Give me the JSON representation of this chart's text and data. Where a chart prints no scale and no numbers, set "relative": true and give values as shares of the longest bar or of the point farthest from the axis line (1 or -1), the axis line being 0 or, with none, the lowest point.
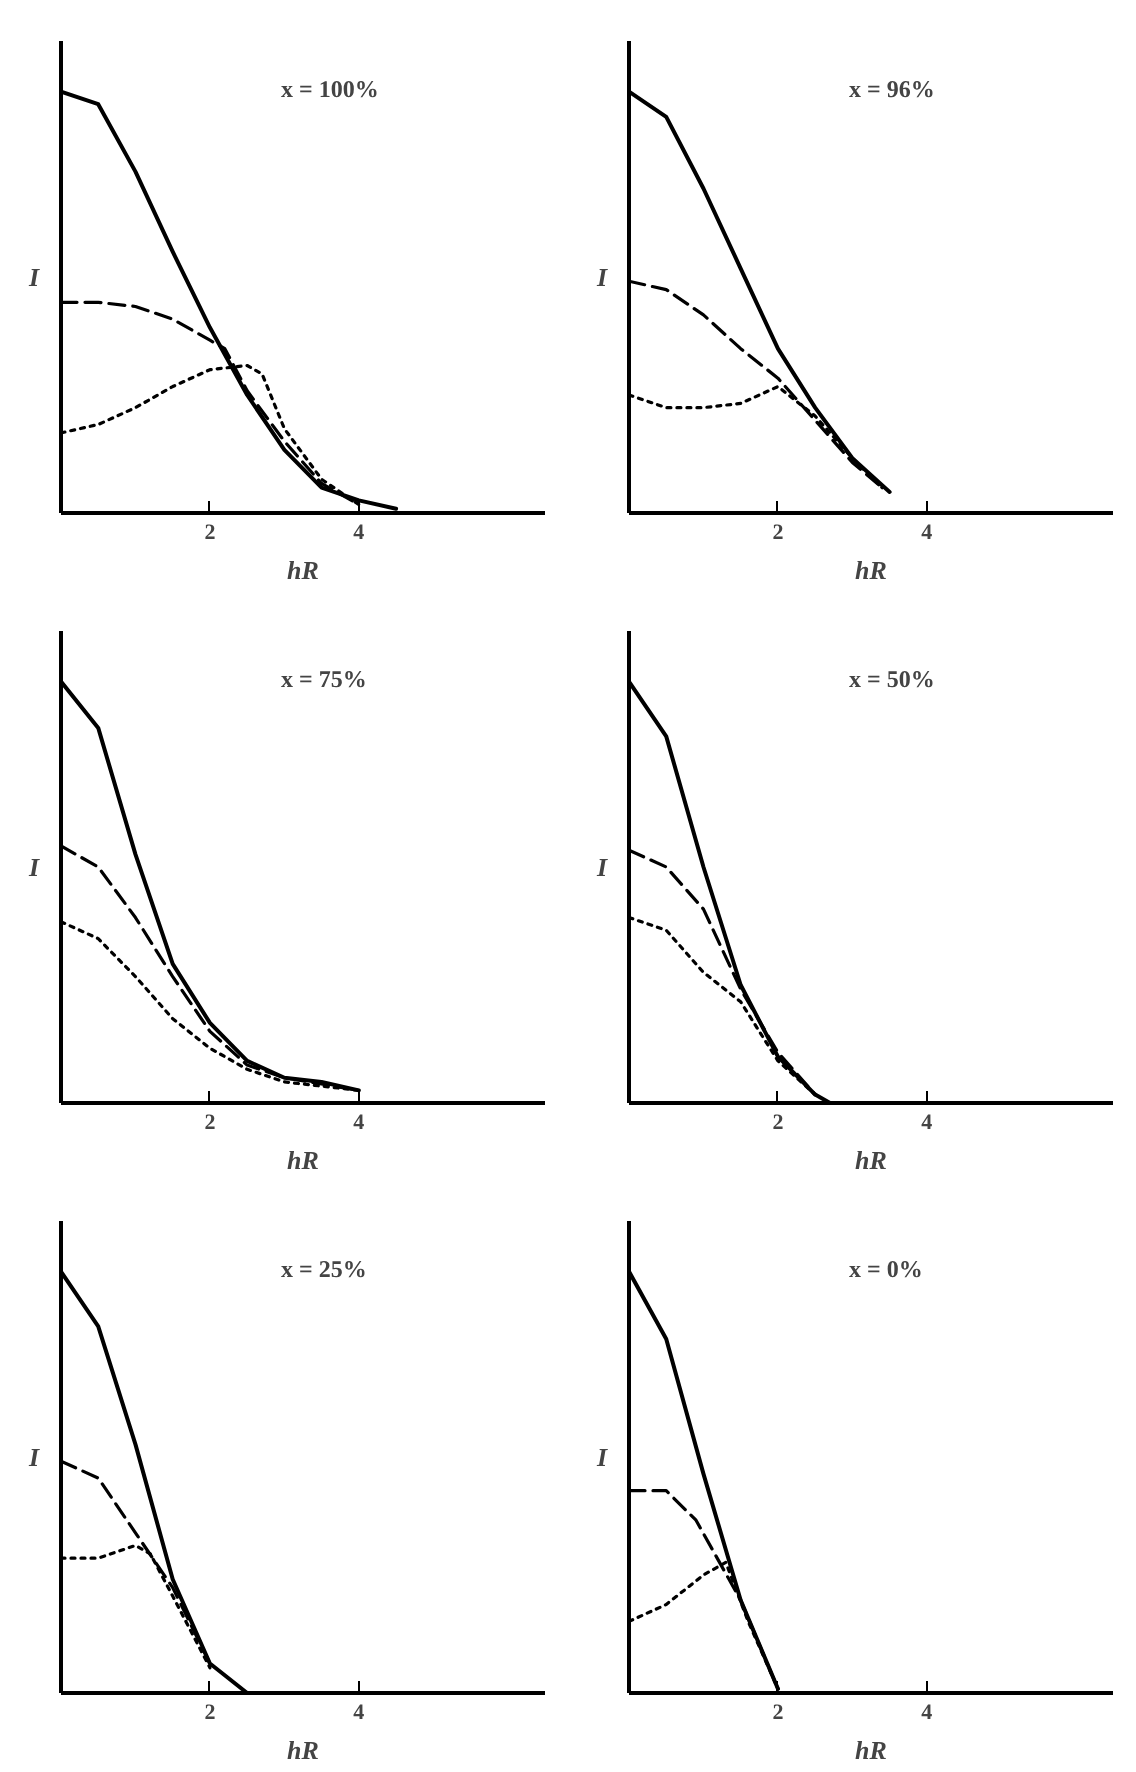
{
  "chart_data": [
    {
      "type": "line",
      "relative": true,
      "xlabel": "hR",
      "ylabel": "I",
      "annotations": [
        "x = 100%"
      ],
      "xlim": [
        0,
        6.5
      ],
      "xticks": [
        2,
        4
      ],
      "grid": false,
      "series": [
        {
          "color": "#000000",
          "line_style": "solid",
          "x": [
            0,
            0.5,
            1,
            1.5,
            2,
            2.5,
            3,
            3.5,
            4,
            4.5
          ],
          "values": [
            1.0,
            0.97,
            0.81,
            0.62,
            0.44,
            0.28,
            0.15,
            0.06,
            0.03,
            0.01
          ]
        },
        {
          "color": "#000000",
          "line_style": "dashed",
          "x": [
            0,
            0.5,
            1,
            1.5,
            2,
            2.2,
            2.5,
            3,
            3.5,
            4
          ],
          "values": [
            0.5,
            0.5,
            0.49,
            0.46,
            0.41,
            0.39,
            0.29,
            0.17,
            0.07,
            0.02
          ]
        },
        {
          "color": "#000000",
          "line_style": "dotted",
          "x": [
            0,
            0.5,
            1,
            1.5,
            2,
            2.5,
            2.7,
            3,
            3.5,
            4
          ],
          "values": [
            0.19,
            0.21,
            0.25,
            0.3,
            0.34,
            0.35,
            0.33,
            0.2,
            0.08,
            0.02
          ]
        }
      ]
    },
    {
      "type": "line",
      "relative": true,
      "xlabel": "hR",
      "ylabel": "I",
      "annotations": [
        "x = 96%"
      ],
      "xlim": [
        0,
        6.5
      ],
      "xticks": [
        2,
        4
      ],
      "grid": false,
      "series": [
        {
          "color": "#000000",
          "line_style": "solid",
          "x": [
            0,
            0.5,
            1,
            1.5,
            2,
            2.5,
            3,
            3.5
          ],
          "values": [
            1.0,
            0.94,
            0.77,
            0.58,
            0.39,
            0.25,
            0.13,
            0.05
          ]
        },
        {
          "color": "#000000",
          "line_style": "dashed",
          "x": [
            0,
            0.5,
            1,
            1.5,
            2,
            2.5,
            3,
            3.4
          ],
          "values": [
            0.55,
            0.53,
            0.47,
            0.39,
            0.32,
            0.22,
            0.12,
            0.06
          ]
        },
        {
          "color": "#000000",
          "line_style": "dotted",
          "x": [
            0,
            0.5,
            1,
            1.5,
            2,
            2.5,
            3,
            3.4
          ],
          "values": [
            0.28,
            0.25,
            0.25,
            0.26,
            0.3,
            0.23,
            0.13,
            0.06
          ]
        }
      ]
    },
    {
      "type": "line",
      "relative": true,
      "xlabel": "hR",
      "ylabel": "I",
      "annotations": [
        "x = 75%"
      ],
      "xlim": [
        0,
        6.5
      ],
      "xticks": [
        2,
        4
      ],
      "grid": false,
      "series": [
        {
          "color": "#000000",
          "line_style": "solid",
          "x": [
            0,
            0.5,
            1,
            1.5,
            2,
            2.5,
            3,
            3.5,
            4
          ],
          "values": [
            1.0,
            0.89,
            0.59,
            0.33,
            0.19,
            0.1,
            0.06,
            0.05,
            0.03
          ]
        },
        {
          "color": "#000000",
          "line_style": "dashed",
          "x": [
            0,
            0.5,
            1,
            1.5,
            2,
            2.5,
            3,
            4
          ],
          "values": [
            0.61,
            0.56,
            0.44,
            0.3,
            0.17,
            0.09,
            0.06,
            0.03
          ]
        },
        {
          "color": "#000000",
          "line_style": "dotted",
          "x": [
            0,
            0.5,
            1,
            1.5,
            2,
            2.5,
            3,
            4
          ],
          "values": [
            0.43,
            0.39,
            0.3,
            0.2,
            0.13,
            0.08,
            0.05,
            0.03
          ]
        }
      ]
    },
    {
      "type": "line",
      "relative": true,
      "xlabel": "hR",
      "ylabel": "I",
      "annotations": [
        "x = 50%"
      ],
      "xlim": [
        0,
        6.5
      ],
      "xticks": [
        2,
        4
      ],
      "grid": false,
      "series": [
        {
          "color": "#000000",
          "line_style": "solid",
          "x": [
            0,
            0.5,
            1,
            1.5,
            2,
            2.5,
            2.7
          ],
          "values": [
            1.0,
            0.87,
            0.56,
            0.28,
            0.11,
            0.02,
            0
          ]
        },
        {
          "color": "#000000",
          "line_style": "dashed",
          "x": [
            0,
            0.5,
            1,
            1.5,
            2,
            2.5
          ],
          "values": [
            0.6,
            0.56,
            0.46,
            0.27,
            0.12,
            0.02
          ]
        },
        {
          "color": "#000000",
          "line_style": "dotted",
          "x": [
            0,
            0.5,
            1,
            1.5,
            2,
            2.5
          ],
          "values": [
            0.44,
            0.41,
            0.31,
            0.24,
            0.1,
            0.02
          ]
        }
      ]
    },
    {
      "type": "line",
      "relative": true,
      "xlabel": "hR",
      "ylabel": "I",
      "annotations": [
        "x = 25%"
      ],
      "xlim": [
        0,
        6.5
      ],
      "xticks": [
        2,
        4
      ],
      "grid": false,
      "series": [
        {
          "color": "#000000",
          "line_style": "solid",
          "x": [
            0,
            0.5,
            1,
            1.5,
            2,
            2.5
          ],
          "values": [
            1.0,
            0.87,
            0.59,
            0.27,
            0.07,
            0
          ]
        },
        {
          "color": "#000000",
          "line_style": "dashed",
          "x": [
            0,
            0.5,
            1,
            1.5,
            2
          ],
          "values": [
            0.55,
            0.51,
            0.38,
            0.25,
            0.07
          ]
        },
        {
          "color": "#000000",
          "line_style": "dotted",
          "x": [
            0,
            0.5,
            1,
            1.2,
            1.5,
            2
          ],
          "values": [
            0.32,
            0.32,
            0.35,
            0.33,
            0.23,
            0.06
          ]
        }
      ]
    },
    {
      "type": "line",
      "relative": true,
      "xlabel": "hR",
      "ylabel": "I",
      "annotations": [
        "x = 0%"
      ],
      "xlim": [
        0,
        6.5
      ],
      "xticks": [
        2,
        4
      ],
      "grid": false,
      "series": [
        {
          "color": "#000000",
          "line_style": "solid",
          "x": [
            0,
            0.5,
            1,
            1.5,
            2
          ],
          "values": [
            1.0,
            0.84,
            0.52,
            0.22,
            0.01
          ]
        },
        {
          "color": "#000000",
          "line_style": "dashed",
          "x": [
            0,
            0.5,
            0.9,
            1.5,
            2
          ],
          "values": [
            0.48,
            0.48,
            0.41,
            0.22,
            0.01
          ]
        },
        {
          "color": "#000000",
          "line_style": "dotted",
          "x": [
            0,
            0.5,
            1,
            1.3,
            1.6,
            2
          ],
          "values": [
            0.17,
            0.21,
            0.28,
            0.31,
            0.17,
            0.01
          ]
        }
      ]
    }
  ]
}
